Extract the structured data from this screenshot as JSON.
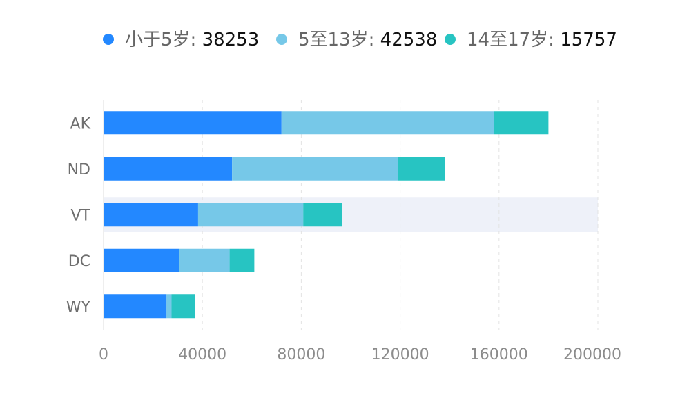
{
  "chart_data": {
    "type": "bar",
    "orientation": "horizontal",
    "stacked": true,
    "categories": [
      "AK",
      "ND",
      "VT",
      "DC",
      "WY"
    ],
    "series": [
      {
        "name": "小于5岁",
        "color": "#2388ff",
        "values": [
          72000,
          52000,
          38253,
          30500,
          25500
        ]
      },
      {
        "name": "5至13岁",
        "color": "#76c8e8",
        "values": [
          86000,
          67000,
          42538,
          20500,
          2000
        ]
      },
      {
        "name": "14至17岁",
        "color": "#27c4c2",
        "values": [
          22000,
          19000,
          15757,
          10000,
          9500
        ]
      }
    ],
    "legend": {
      "position": "top",
      "items": [
        {
          "label": "小于5岁: ",
          "value": "38253"
        },
        {
          "label": "5至13岁: ",
          "value": "42538"
        },
        {
          "label": "14至17岁: ",
          "value": "15757"
        }
      ]
    },
    "x_ticks": [
      "0",
      "40000",
      "80000",
      "120000",
      "160000",
      "200000"
    ],
    "xlim": [
      0,
      200000
    ],
    "highlighted_category": "VT",
    "grid": true,
    "colors": {
      "highlight_band": "#eef1f9",
      "gridline": "#e3e3e3",
      "axis": "#dddddd"
    }
  }
}
